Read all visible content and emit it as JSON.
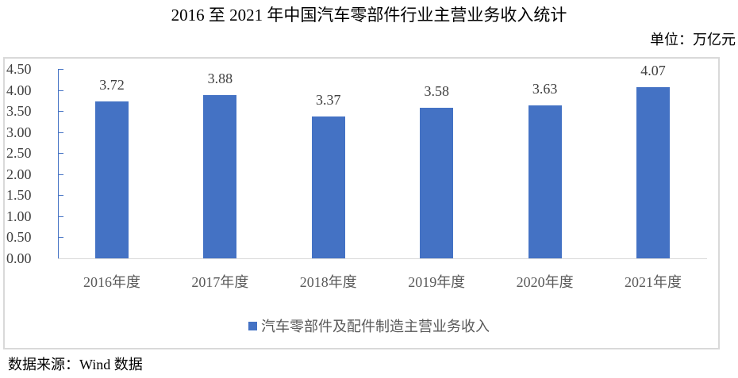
{
  "title": "2016 至 2021 年中国汽车零部件行业主营业务收入统计",
  "unit": "单位：万亿元",
  "source": "数据来源：Wind 数据",
  "colors": {
    "bar": "#4472c4",
    "axis": "#4472c4",
    "grid_frame": "#d9d9d9"
  },
  "chart_data": {
    "type": "bar",
    "title": "2016 至 2021 年中国汽车零部件行业主营业务收入统计",
    "xlabel": "",
    "ylabel": "单位：万亿元",
    "categories": [
      "2016年度",
      "2017年度",
      "2018年度",
      "2019年度",
      "2020年度",
      "2021年度"
    ],
    "series": [
      {
        "name": "汽车零部件及配件制造主营业务收入",
        "values": [
          3.72,
          3.88,
          3.37,
          3.58,
          3.63,
          4.07
        ]
      }
    ],
    "data_labels": [
      "3.72",
      "3.88",
      "3.37",
      "3.58",
      "3.63",
      "4.07"
    ],
    "ylim": [
      0,
      4.5
    ],
    "yticks": [
      "0.00",
      "0.50",
      "1.00",
      "1.50",
      "2.00",
      "2.50",
      "3.00",
      "3.50",
      "4.00",
      "4.50"
    ],
    "grid": false,
    "legend_position": "bottom"
  }
}
